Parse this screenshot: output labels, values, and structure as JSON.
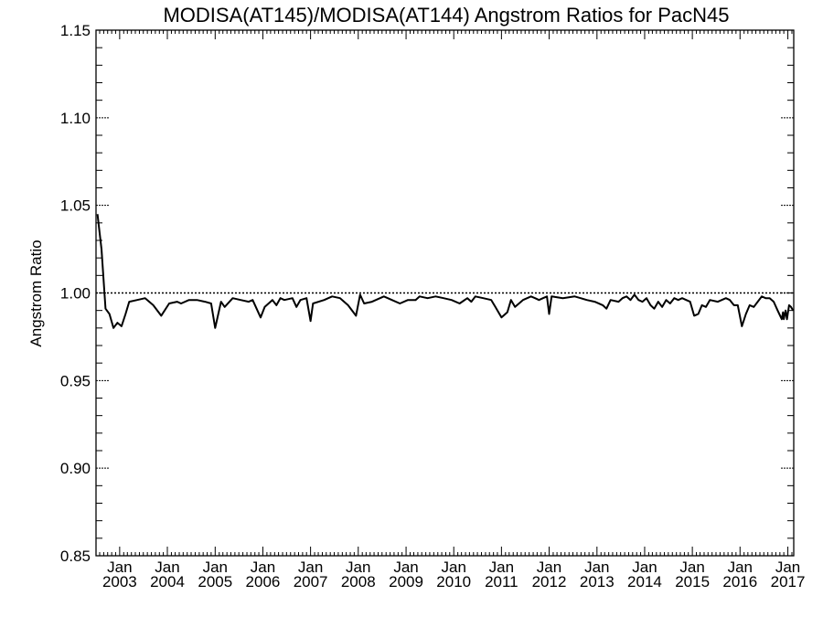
{
  "chart_data": {
    "type": "line",
    "title": "MODISA(AT145)/MODISA(AT144)  Angstrom Ratios for PacN45",
    "xlabel": "",
    "ylabel": "Angstrom Ratio",
    "ylim": [
      0.85,
      1.15
    ],
    "xlim": [
      "2002-07-04",
      "2017-02-15"
    ],
    "y_ticks": [
      "0.85",
      "0.90",
      "0.95",
      "1.00",
      "1.05",
      "1.10",
      "1.15"
    ],
    "x_ticks": [
      {
        "date": "2003-01-01",
        "month": "Jan",
        "year": "2003"
      },
      {
        "date": "2004-01-01",
        "month": "Jan",
        "year": "2004"
      },
      {
        "date": "2005-01-01",
        "month": "Jan",
        "year": "2005"
      },
      {
        "date": "2006-01-01",
        "month": "Jan",
        "year": "2006"
      },
      {
        "date": "2007-01-01",
        "month": "Jan",
        "year": "2007"
      },
      {
        "date": "2008-01-01",
        "month": "Jan",
        "year": "2008"
      },
      {
        "date": "2009-01-01",
        "month": "Jan",
        "year": "2009"
      },
      {
        "date": "2010-01-01",
        "month": "Jan",
        "year": "2010"
      },
      {
        "date": "2011-01-01",
        "month": "Jan",
        "year": "2011"
      },
      {
        "date": "2012-01-01",
        "month": "Jan",
        "year": "2012"
      },
      {
        "date": "2013-01-01",
        "month": "Jan",
        "year": "2013"
      },
      {
        "date": "2014-01-01",
        "month": "Jan",
        "year": "2014"
      },
      {
        "date": "2015-01-01",
        "month": "Jan",
        "year": "2015"
      },
      {
        "date": "2016-01-01",
        "month": "Jan",
        "year": "2016"
      },
      {
        "date": "2017-01-01",
        "month": "Jan",
        "year": "2017"
      }
    ],
    "reference_line": 1.0,
    "grid": false,
    "series": [
      {
        "points": [
          [
            "2002-07-15",
            1.045
          ],
          [
            "2002-08-15",
            1.025
          ],
          [
            "2002-09-15",
            0.991
          ],
          [
            "2002-10-15",
            0.988
          ],
          [
            "2002-11-15",
            0.98
          ],
          [
            "2002-12-15",
            0.983
          ],
          [
            "2003-01-15",
            0.981
          ],
          [
            "2003-02-15",
            0.988
          ],
          [
            "2003-03-15",
            0.995
          ],
          [
            "2003-05-15",
            0.996
          ],
          [
            "2003-07-15",
            0.997
          ],
          [
            "2003-09-15",
            0.993
          ],
          [
            "2003-11-15",
            0.987
          ],
          [
            "2004-01-15",
            0.994
          ],
          [
            "2004-03-15",
            0.995
          ],
          [
            "2004-04-15",
            0.994
          ],
          [
            "2004-06-15",
            0.996
          ],
          [
            "2004-08-15",
            0.996
          ],
          [
            "2004-10-15",
            0.995
          ],
          [
            "2004-12-01",
            0.994
          ],
          [
            "2005-01-01",
            0.98
          ],
          [
            "2005-02-15",
            0.995
          ],
          [
            "2005-03-15",
            0.992
          ],
          [
            "2005-05-15",
            0.997
          ],
          [
            "2005-07-15",
            0.996
          ],
          [
            "2005-09-15",
            0.995
          ],
          [
            "2005-10-15",
            0.996
          ],
          [
            "2005-12-15",
            0.986
          ],
          [
            "2006-01-15",
            0.992
          ],
          [
            "2006-03-15",
            0.996
          ],
          [
            "2006-04-15",
            0.993
          ],
          [
            "2006-05-15",
            0.997
          ],
          [
            "2006-06-15",
            0.996
          ],
          [
            "2006-08-15",
            0.997
          ],
          [
            "2006-09-15",
            0.992
          ],
          [
            "2006-10-15",
            0.996
          ],
          [
            "2006-12-01",
            0.997
          ],
          [
            "2007-01-01",
            0.984
          ],
          [
            "2007-01-20",
            0.994
          ],
          [
            "2007-04-15",
            0.996
          ],
          [
            "2007-06-15",
            0.998
          ],
          [
            "2007-08-15",
            0.997
          ],
          [
            "2007-10-15",
            0.993
          ],
          [
            "2007-12-15",
            0.987
          ],
          [
            "2008-01-15",
            0.999
          ],
          [
            "2008-02-15",
            0.994
          ],
          [
            "2008-04-15",
            0.995
          ],
          [
            "2008-07-15",
            0.998
          ],
          [
            "2008-09-15",
            0.996
          ],
          [
            "2008-11-15",
            0.994
          ],
          [
            "2009-01-15",
            0.996
          ],
          [
            "2009-03-15",
            0.996
          ],
          [
            "2009-04-15",
            0.998
          ],
          [
            "2009-06-15",
            0.997
          ],
          [
            "2009-08-15",
            0.998
          ],
          [
            "2009-10-15",
            0.997
          ],
          [
            "2009-12-15",
            0.996
          ],
          [
            "2010-02-15",
            0.994
          ],
          [
            "2010-04-15",
            0.997
          ],
          [
            "2010-05-15",
            0.995
          ],
          [
            "2010-06-15",
            0.998
          ],
          [
            "2010-08-15",
            0.997
          ],
          [
            "2010-10-15",
            0.996
          ],
          [
            "2010-11-15",
            0.992
          ],
          [
            "2011-01-01",
            0.986
          ],
          [
            "2011-02-15",
            0.989
          ],
          [
            "2011-03-15",
            0.996
          ],
          [
            "2011-04-15",
            0.992
          ],
          [
            "2011-06-15",
            0.996
          ],
          [
            "2011-08-15",
            0.998
          ],
          [
            "2011-09-15",
            0.997
          ],
          [
            "2011-10-15",
            0.996
          ],
          [
            "2011-11-15",
            0.997
          ],
          [
            "2011-12-15",
            0.998
          ],
          [
            "2012-01-01",
            0.988
          ],
          [
            "2012-01-20",
            0.998
          ],
          [
            "2012-04-15",
            0.997
          ],
          [
            "2012-07-15",
            0.998
          ],
          [
            "2012-10-15",
            0.996
          ],
          [
            "2012-12-15",
            0.995
          ],
          [
            "2013-02-15",
            0.993
          ],
          [
            "2013-03-15",
            0.991
          ],
          [
            "2013-04-15",
            0.996
          ],
          [
            "2013-06-15",
            0.995
          ],
          [
            "2013-07-15",
            0.997
          ],
          [
            "2013-08-15",
            0.998
          ],
          [
            "2013-09-15",
            0.996
          ],
          [
            "2013-10-15",
            0.999
          ],
          [
            "2013-11-15",
            0.996
          ],
          [
            "2013-12-15",
            0.995
          ],
          [
            "2014-01-15",
            0.997
          ],
          [
            "2014-02-15",
            0.993
          ],
          [
            "2014-03-15",
            0.991
          ],
          [
            "2014-04-15",
            0.995
          ],
          [
            "2014-05-15",
            0.992
          ],
          [
            "2014-06-15",
            0.996
          ],
          [
            "2014-07-15",
            0.994
          ],
          [
            "2014-08-15",
            0.997
          ],
          [
            "2014-09-15",
            0.996
          ],
          [
            "2014-10-15",
            0.997
          ],
          [
            "2014-11-15",
            0.996
          ],
          [
            "2014-12-15",
            0.995
          ],
          [
            "2015-01-15",
            0.987
          ],
          [
            "2015-02-15",
            0.988
          ],
          [
            "2015-03-15",
            0.993
          ],
          [
            "2015-04-15",
            0.992
          ],
          [
            "2015-05-15",
            0.996
          ],
          [
            "2015-07-15",
            0.995
          ],
          [
            "2015-09-15",
            0.997
          ],
          [
            "2015-10-15",
            0.996
          ],
          [
            "2015-11-15",
            0.993
          ],
          [
            "2015-12-15",
            0.993
          ],
          [
            "2016-01-15",
            0.981
          ],
          [
            "2016-02-15",
            0.988
          ],
          [
            "2016-03-15",
            0.993
          ],
          [
            "2016-04-15",
            0.992
          ],
          [
            "2016-05-15",
            0.995
          ],
          [
            "2016-06-15",
            0.998
          ],
          [
            "2016-07-15",
            0.997
          ],
          [
            "2016-08-15",
            0.997
          ],
          [
            "2016-09-15",
            0.995
          ],
          [
            "2016-10-15",
            0.99
          ],
          [
            "2016-11-15",
            0.985
          ],
          [
            "2016-11-25",
            0.989
          ],
          [
            "2016-12-01",
            0.985
          ],
          [
            "2016-12-15",
            0.99
          ],
          [
            "2016-12-25",
            0.985
          ],
          [
            "2017-01-10",
            0.993
          ],
          [
            "2017-01-25",
            0.992
          ],
          [
            "2017-02-10",
            0.99
          ]
        ]
      }
    ]
  }
}
